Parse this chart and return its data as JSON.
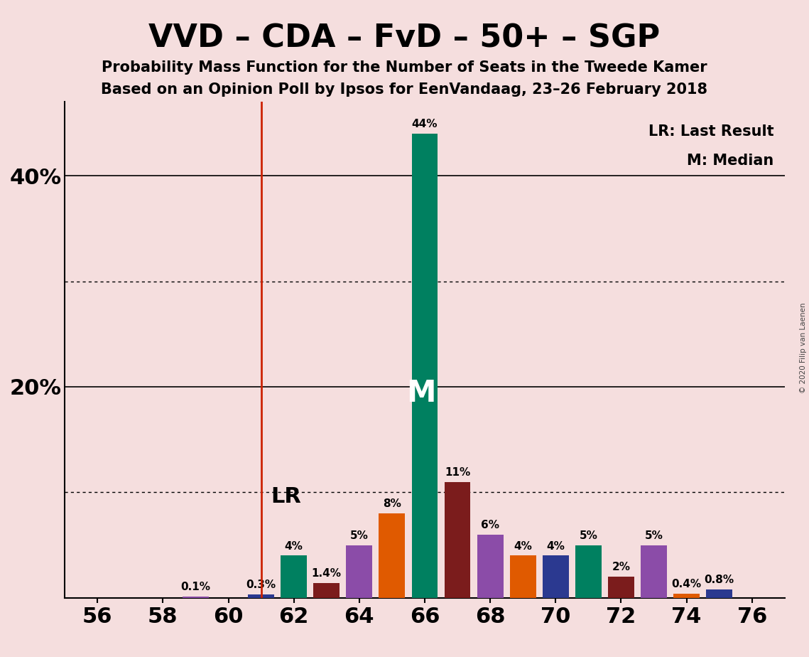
{
  "title": "VVD – CDA – FvD – 50+ – SGP",
  "subtitle1": "Probability Mass Function for the Number of Seats in the Tweede Kamer",
  "subtitle2": "Based on an Opinion Poll by Ipsos for EenVandaag, 23–26 February 2018",
  "copyright": "© 2020 Filip van Laenen",
  "legend_lr": "LR: Last Result",
  "legend_m": "M: Median",
  "background_color": "#f5dede",
  "seats": [
    56,
    57,
    58,
    59,
    60,
    61,
    62,
    63,
    64,
    65,
    66,
    67,
    68,
    69,
    70,
    71,
    72,
    73,
    74,
    75,
    76
  ],
  "probabilities": [
    0.0,
    0.0,
    0.0,
    0.1,
    0.0,
    0.3,
    4.0,
    1.4,
    5.0,
    8.0,
    44.0,
    11.0,
    6.0,
    4.0,
    4.0,
    5.0,
    2.0,
    5.0,
    0.4,
    0.8,
    0.0
  ],
  "bar_colors": [
    "#2b3990",
    "#008060",
    "#7b1c1c",
    "#8b4ca8",
    "#e05a00",
    "#2b3990",
    "#008060",
    "#7b1c1c",
    "#8b4ca8",
    "#e05a00",
    "#008060",
    "#7b1c1c",
    "#8b4ca8",
    "#e05a00",
    "#2b3990",
    "#008060",
    "#7b1c1c",
    "#8b4ca8",
    "#e05a00",
    "#2b3990",
    "#008060"
  ],
  "last_result": 61,
  "median": 66,
  "ylim": [
    0,
    47
  ],
  "ytick_positions": [
    0,
    10,
    20,
    30,
    40
  ],
  "ytick_labels": [
    "",
    "",
    "20%",
    "",
    "40%"
  ],
  "xticks": [
    56,
    58,
    60,
    62,
    64,
    66,
    68,
    70,
    72,
    74,
    76
  ],
  "xlim": [
    55.0,
    77.0
  ],
  "bar_width": 0.8,
  "label_fontsize": 11,
  "title_fontsize": 32,
  "subtitle_fontsize": 15,
  "axis_tick_fontsize": 22,
  "dotted_lines": [
    10,
    30
  ],
  "solid_lines": [
    20,
    40
  ]
}
